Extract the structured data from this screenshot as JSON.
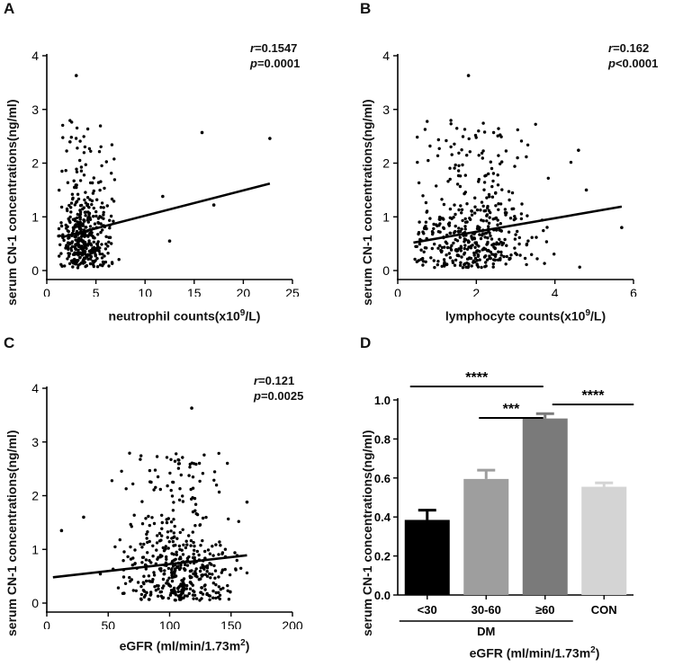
{
  "chart_data": [
    {
      "panel": "A",
      "type": "scatter",
      "xlabel": "neutrophil counts(x10",
      "xlabel_sup": "9",
      "xlabel_tail": "/L)",
      "ylabel": "serum CN-1 concentrations(ng/ml)",
      "xlim": [
        0,
        25
      ],
      "ylim": [
        0,
        4
      ],
      "xticks": [
        "0",
        "5",
        "10",
        "15",
        "20",
        "25"
      ],
      "yticks": [
        "0",
        "1",
        "2",
        "3",
        "4"
      ],
      "stat_r_label": "r",
      "stat_r": "=0.1547",
      "stat_p_label": "p",
      "stat_p": "=0.0001",
      "fit": {
        "x": [
          1.5,
          22.7
        ],
        "y": [
          0.62,
          1.62
        ]
      },
      "cluster": {
        "center_x": 3.8,
        "spread_x": 1.3,
        "min_x": 1.2,
        "max_x": 9.0,
        "n": 420
      },
      "outliers": [
        [
          3.0,
          3.63
        ],
        [
          15.8,
          2.57
        ],
        [
          22.7,
          2.46
        ],
        [
          17.0,
          1.22
        ],
        [
          11.8,
          1.38
        ],
        [
          12.5,
          0.55
        ]
      ]
    },
    {
      "panel": "B",
      "type": "scatter",
      "xlabel": "lymphocyte counts(x10",
      "xlabel_sup": "9",
      "xlabel_tail": "/L)",
      "ylabel": "serum CN-1 concentrations(ng/ml)",
      "xlim": [
        0,
        6
      ],
      "ylim": [
        0,
        4
      ],
      "xticks": [
        "0",
        "2",
        "4",
        "6"
      ],
      "yticks": [
        "0",
        "1",
        "2",
        "3",
        "4"
      ],
      "stat_r_label": "r",
      "stat_r": "=0.162",
      "stat_p_label": "p",
      "stat_p": "<0.0001",
      "fit": {
        "x": [
          0.4,
          5.7
        ],
        "y": [
          0.52,
          1.19
        ]
      },
      "cluster": {
        "center_x": 1.9,
        "spread_x": 0.8,
        "min_x": 0.4,
        "max_x": 5.0,
        "n": 460
      },
      "outliers": [
        [
          1.8,
          3.63
        ],
        [
          4.6,
          2.24
        ],
        [
          5.7,
          0.8
        ],
        [
          4.8,
          1.5
        ]
      ]
    },
    {
      "panel": "C",
      "type": "scatter",
      "xlabel": "eGFR (ml/min/1.73m",
      "xlabel_sup": "2",
      "xlabel_tail": ")",
      "ylabel": "serum CN-1 concentrations(ng/ml)",
      "xlim": [
        0,
        200
      ],
      "ylim": [
        0,
        4
      ],
      "xticks": [
        "0",
        "50",
        "100",
        "150",
        "200"
      ],
      "yticks": [
        "0",
        "1",
        "2",
        "3",
        "4"
      ],
      "stat_r_label": "r",
      "stat_r": "=0.121",
      "stat_p_label": "p",
      "stat_p": "=0.0025",
      "fit": {
        "x": [
          5,
          163
        ],
        "y": [
          0.48,
          0.89
        ]
      },
      "cluster": {
        "center_x": 108,
        "spread_x": 22,
        "min_x": 5,
        "max_x": 165,
        "n": 470
      },
      "outliers": [
        [
          118,
          3.63
        ],
        [
          163,
          1.88
        ],
        [
          12,
          1.35
        ],
        [
          30,
          1.6
        ]
      ]
    },
    {
      "panel": "D",
      "type": "bar",
      "xlabel": "eGFR (ml/min/1.73m",
      "xlabel_sup": "2",
      "xlabel_tail": ")",
      "ylabel": "serum CN-1 concentrations(ng/ml)",
      "ylim": [
        0,
        1.0
      ],
      "yticks": [
        "0.0",
        "0.2",
        "0.4",
        "0.6",
        "0.8",
        "1.0"
      ],
      "categories": [
        "<30",
        "30-60",
        "≥60",
        "CON"
      ],
      "values": [
        0.385,
        0.595,
        0.905,
        0.555
      ],
      "errors": [
        0.05,
        0.045,
        0.025,
        0.02
      ],
      "colors": [
        "#000000",
        "#9e9e9e",
        "#7a7a7a",
        "#d4d4d4"
      ],
      "group_label": "DM",
      "significance": [
        {
          "from": 0,
          "to": 2,
          "label": "****"
        },
        {
          "from": 1,
          "to": 2,
          "label": "***"
        },
        {
          "from": 2,
          "to": 3,
          "label": "****"
        }
      ]
    }
  ]
}
